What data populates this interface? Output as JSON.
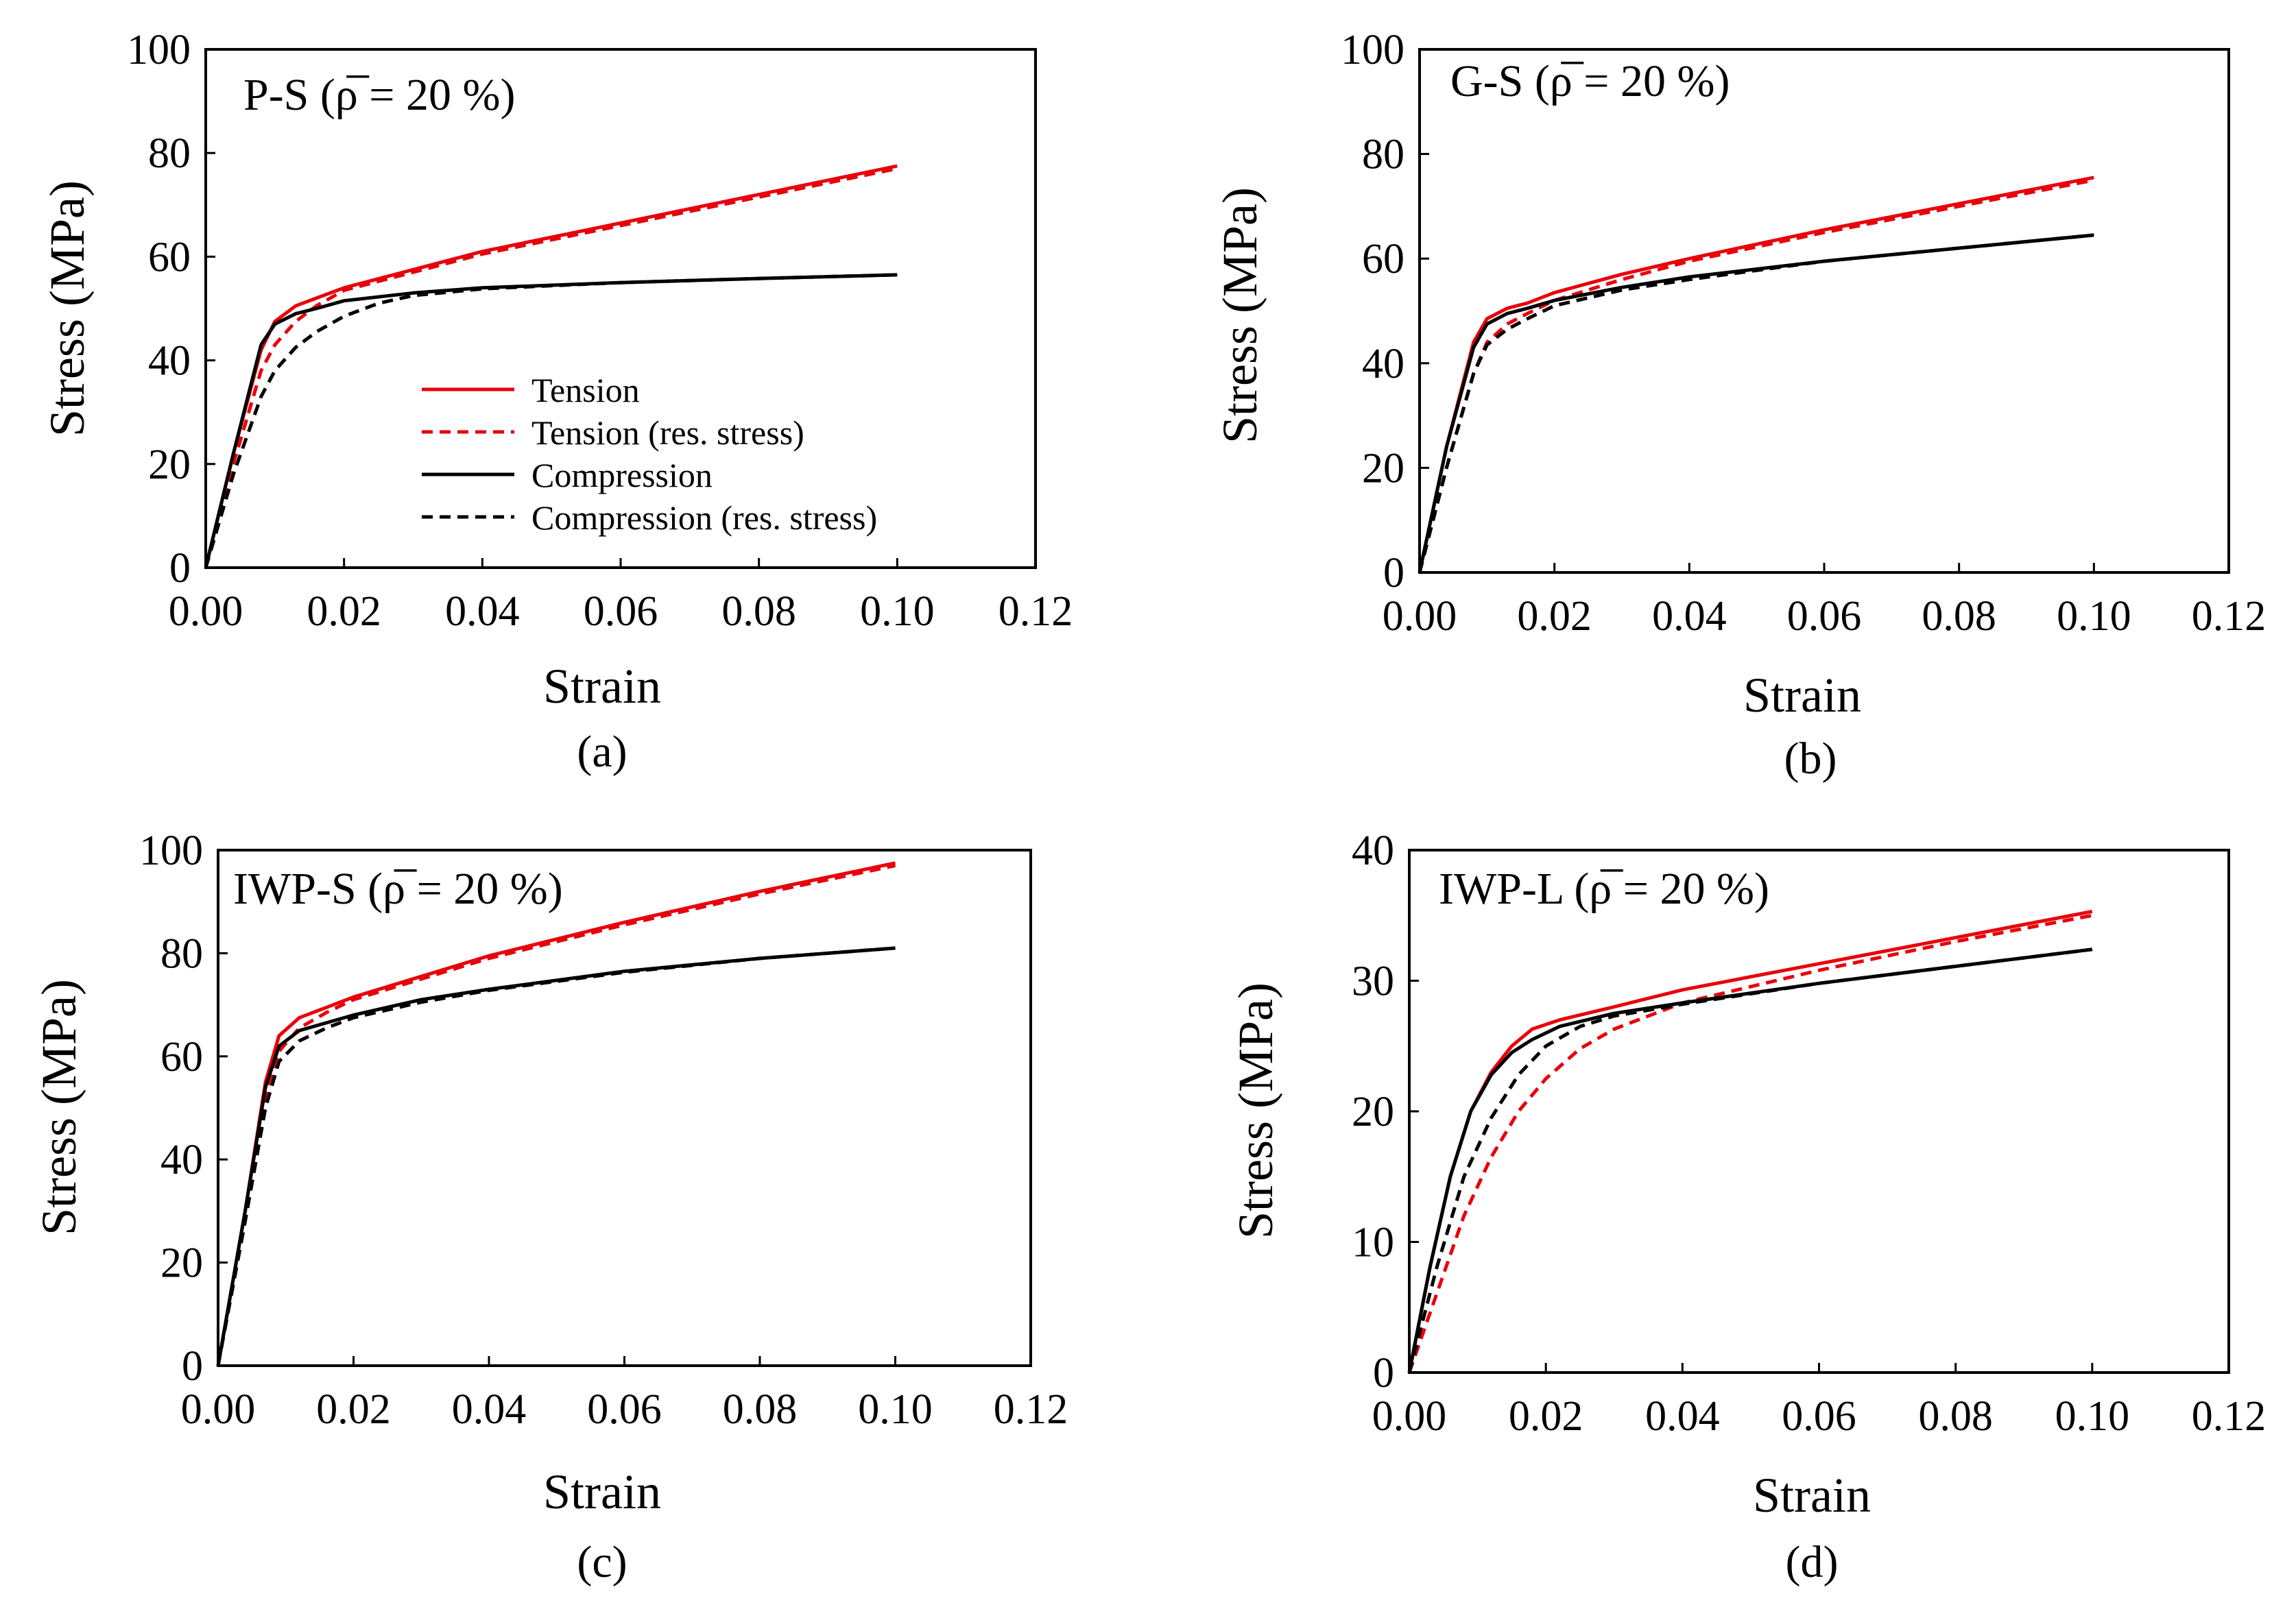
{
  "figure": {
    "captions": [
      "(a)",
      "(b)",
      "(c)",
      "(d)"
    ]
  },
  "series_styles": [
    {
      "name": "Tension",
      "color": "#e8000b",
      "dashed": false
    },
    {
      "name": "Tension (res. stress)",
      "color": "#e8000b",
      "dashed": true
    },
    {
      "name": "Compression",
      "color": "#000000",
      "dashed": false
    },
    {
      "name": "Compression (res. stress)",
      "color": "#000000",
      "dashed": true
    }
  ],
  "chart_data": [
    {
      "type": "line",
      "title": "P-S (ρ̅ = 20 %)",
      "caption": "(a)",
      "xlabel": "Strain",
      "ylabel": "Stress (MPa)",
      "xlim": [
        0,
        0.12
      ],
      "ylim": [
        0,
        100
      ],
      "xticks": [
        "0.00",
        "0.02",
        "0.04",
        "0.06",
        "0.08",
        "0.10",
        "0.12"
      ],
      "yticks": [
        "0",
        "20",
        "40",
        "60",
        "80",
        "100"
      ],
      "legend": {
        "position": "center-right",
        "entries": [
          "Tension",
          "Tension (res. stress)",
          "Compression",
          "Compression (res. stress)"
        ]
      },
      "series": [
        {
          "name": "Tension",
          "x": [
            0,
            0.004,
            0.008,
            0.01,
            0.013,
            0.016,
            0.02,
            0.03,
            0.04,
            0.06,
            0.08,
            0.1
          ],
          "y": [
            0,
            22,
            42,
            47.5,
            50.5,
            52,
            54,
            57.5,
            61,
            66.5,
            72,
            77.5
          ]
        },
        {
          "name": "Tension (res. stress)",
          "x": [
            0,
            0.004,
            0.008,
            0.01,
            0.013,
            0.016,
            0.02,
            0.03,
            0.04,
            0.06,
            0.08,
            0.1
          ],
          "y": [
            0,
            20,
            38,
            43,
            47.5,
            50.5,
            53.5,
            57,
            60.5,
            66,
            71.5,
            77
          ]
        },
        {
          "name": "Compression",
          "x": [
            0,
            0.004,
            0.008,
            0.01,
            0.013,
            0.016,
            0.02,
            0.03,
            0.04,
            0.06,
            0.08,
            0.1
          ],
          "y": [
            0,
            22,
            43,
            47,
            49,
            50,
            51.5,
            53,
            54,
            55,
            55.8,
            56.5
          ]
        },
        {
          "name": "Compression (res. stress)",
          "x": [
            0,
            0.004,
            0.008,
            0.01,
            0.013,
            0.016,
            0.02,
            0.025,
            0.03,
            0.04,
            0.06,
            0.08,
            0.1
          ],
          "y": [
            0,
            18,
            33,
            38,
            42.5,
            45.5,
            48.5,
            51,
            52.5,
            53.8,
            55,
            55.8,
            56.5
          ]
        }
      ]
    },
    {
      "type": "line",
      "title": "G-S (ρ̅ = 20 %)",
      "caption": "(b)",
      "xlabel": "Strain",
      "ylabel": "Stress (MPa)",
      "xlim": [
        0,
        0.12
      ],
      "ylim": [
        0,
        100
      ],
      "xticks": [
        "0.00",
        "0.02",
        "0.04",
        "0.06",
        "0.08",
        "0.10",
        "0.12"
      ],
      "yticks": [
        "0",
        "20",
        "40",
        "60",
        "80",
        "100"
      ],
      "series": [
        {
          "name": "Tension",
          "x": [
            0,
            0.004,
            0.008,
            0.01,
            0.013,
            0.016,
            0.02,
            0.03,
            0.04,
            0.06,
            0.08,
            0.1
          ],
          "y": [
            0,
            24,
            44,
            48.5,
            50.5,
            51.5,
            53.5,
            57,
            60,
            65.5,
            70.5,
            75.5
          ]
        },
        {
          "name": "Tension (res. stress)",
          "x": [
            0,
            0.004,
            0.008,
            0.01,
            0.013,
            0.016,
            0.02,
            0.03,
            0.04,
            0.06,
            0.08,
            0.1
          ],
          "y": [
            0,
            20,
            38,
            44,
            47.5,
            49.5,
            52,
            56,
            59.5,
            65,
            70,
            75
          ]
        },
        {
          "name": "Compression",
          "x": [
            0,
            0.004,
            0.008,
            0.01,
            0.013,
            0.016,
            0.02,
            0.03,
            0.04,
            0.06,
            0.08,
            0.1
          ],
          "y": [
            0,
            24,
            43,
            47.5,
            49.5,
            50.5,
            52,
            54.5,
            56.5,
            59.5,
            62,
            64.5
          ]
        },
        {
          "name": "Compression (res. stress)",
          "x": [
            0,
            0.004,
            0.008,
            0.01,
            0.013,
            0.016,
            0.02,
            0.03,
            0.04,
            0.06,
            0.08,
            0.1
          ],
          "y": [
            0,
            20,
            38,
            43.5,
            46.5,
            48.5,
            51,
            54,
            56,
            59.5,
            62,
            64.5
          ]
        }
      ]
    },
    {
      "type": "line",
      "title": "IWP-S (ρ̅ = 20 %)",
      "caption": "(c)",
      "xlabel": "Strain",
      "ylabel": "Stress (MPa)",
      "xlim": [
        0,
        0.12
      ],
      "ylim": [
        0,
        100
      ],
      "xticks": [
        "0.00",
        "0.02",
        "0.04",
        "0.06",
        "0.08",
        "0.10",
        "0.12"
      ],
      "yticks": [
        "0",
        "20",
        "40",
        "60",
        "80",
        "100"
      ],
      "series": [
        {
          "name": "Tension",
          "x": [
            0,
            0.004,
            0.007,
            0.009,
            0.012,
            0.016,
            0.02,
            0.03,
            0.04,
            0.06,
            0.08,
            0.1
          ],
          "y": [
            0,
            30,
            55,
            64,
            67.5,
            69.5,
            71.5,
            75.5,
            79.5,
            86,
            92,
            97.5
          ]
        },
        {
          "name": "Tension (res. stress)",
          "x": [
            0,
            0.004,
            0.007,
            0.009,
            0.012,
            0.016,
            0.02,
            0.03,
            0.04,
            0.06,
            0.08,
            0.1
          ],
          "y": [
            0,
            29,
            52,
            61,
            65.5,
            68.5,
            71,
            75,
            79,
            85.5,
            91.5,
            97
          ]
        },
        {
          "name": "Compression",
          "x": [
            0,
            0.004,
            0.007,
            0.009,
            0.012,
            0.016,
            0.02,
            0.03,
            0.04,
            0.06,
            0.08,
            0.1
          ],
          "y": [
            0,
            30,
            54,
            62,
            65,
            66.5,
            68,
            71,
            73,
            76.5,
            79,
            81
          ]
        },
        {
          "name": "Compression (res. stress)",
          "x": [
            0,
            0.004,
            0.007,
            0.009,
            0.012,
            0.016,
            0.02,
            0.03,
            0.04,
            0.06,
            0.08,
            0.1
          ],
          "y": [
            0,
            28,
            50,
            59,
            63,
            65.5,
            67.5,
            70.5,
            72.8,
            76.3,
            79,
            81
          ]
        }
      ]
    },
    {
      "type": "line",
      "title": "IWP-L (ρ̅ = 20 %)",
      "caption": "(d)",
      "xlabel": "Strain",
      "ylabel": "Stress (MPa)",
      "xlim": [
        0,
        0.12
      ],
      "ylim": [
        0,
        40
      ],
      "xticks": [
        "0.00",
        "0.02",
        "0.04",
        "0.06",
        "0.08",
        "0.10",
        "0.12"
      ],
      "yticks": [
        "0",
        "10",
        "20",
        "30",
        "40"
      ],
      "series": [
        {
          "name": "Tension",
          "x": [
            0,
            0.003,
            0.006,
            0.009,
            0.012,
            0.015,
            0.018,
            0.022,
            0.03,
            0.04,
            0.06,
            0.08,
            0.1
          ],
          "y": [
            0,
            8,
            15,
            20,
            23,
            25,
            26.3,
            27,
            28,
            29.3,
            31.3,
            33.3,
            35.3
          ]
        },
        {
          "name": "Tension (res. stress)",
          "x": [
            0,
            0.004,
            0.008,
            0.012,
            0.016,
            0.02,
            0.025,
            0.03,
            0.04,
            0.06,
            0.08,
            0.1
          ],
          "y": [
            0,
            6,
            12,
            16.5,
            20,
            22.5,
            24.8,
            26.3,
            28.3,
            30.8,
            33,
            35
          ]
        },
        {
          "name": "Compression",
          "x": [
            0,
            0.003,
            0.006,
            0.009,
            0.012,
            0.015,
            0.018,
            0.022,
            0.03,
            0.04,
            0.06,
            0.08,
            0.1
          ],
          "y": [
            0,
            8,
            15,
            20,
            22.8,
            24.5,
            25.5,
            26.5,
            27.5,
            28.3,
            29.8,
            31.1,
            32.4
          ]
        },
        {
          "name": "Compression (res. stress)",
          "x": [
            0,
            0.004,
            0.008,
            0.012,
            0.016,
            0.02,
            0.025,
            0.03,
            0.04,
            0.06,
            0.08,
            0.1
          ],
          "y": [
            0,
            8,
            15,
            19.5,
            22.8,
            25,
            26.5,
            27.3,
            28.2,
            29.8,
            31.1,
            32.4
          ]
        }
      ]
    }
  ]
}
